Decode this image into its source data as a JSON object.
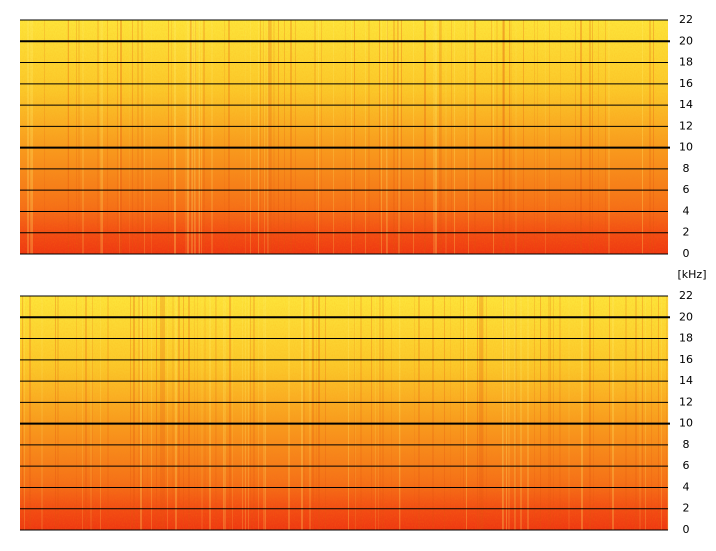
{
  "chart_data": [
    {
      "type": "spectrogram",
      "ylim": [
        0,
        22
      ],
      "yticks": [
        0,
        2,
        4,
        6,
        8,
        10,
        12,
        14,
        16,
        18,
        20,
        22
      ],
      "bold_gridlines": [
        10,
        20
      ],
      "grid": true,
      "y_label": "[kHz]"
    },
    {
      "type": "spectrogram",
      "ylim": [
        0,
        22
      ],
      "yticks": [
        0,
        2,
        4,
        6,
        8,
        10,
        12,
        14,
        16,
        18,
        20,
        22
      ],
      "bold_gridlines": [
        10,
        20
      ],
      "grid": true
    }
  ]
}
